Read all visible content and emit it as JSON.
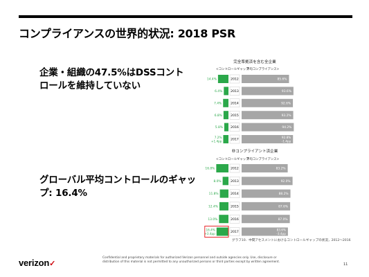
{
  "slide": {
    "title": "コンプライアンスの世界的状況: 2018 PSR",
    "point1_line1": "企業・組織の47.5%はDSSコント",
    "point1_line2": "ロールを維持していない",
    "point2_line1": "グローバル平均コントロールのギャッ",
    "point2_line2": "プ: 16.4%",
    "caption": "グラフ10．中間アセスメントにおけるコントロールギャップの状況，2012～2016",
    "footnote_line1": "Confidential and proprietary materials for authorized Verizon personnel and outside agencies only. Use, disclosure or",
    "footnote_line2": "distribution of this material is not permitted to any unauthorized persons or third parties except by written agreement.",
    "page_number": "11",
    "logo_text": "verizon",
    "logo_mark": "✓"
  },
  "colors": {
    "gap_bar": "#2ba84a",
    "gap_label": "#2ba84a",
    "score_bar": "#a6a6a6",
    "score_label": "#ffffff",
    "year_box": "#ffffff",
    "highlight_box": "#e8282b",
    "delta_label": "#2ba84a"
  },
  "chart_data": [
    {
      "type": "bar",
      "title": "完全準拠済を含む全企業",
      "legend_gap": "<コントロールギャップ",
      "legend_score": "平均コンプライアンス>",
      "categories": [
        "2012",
        "2013",
        "2014",
        "2015",
        "2016",
        "2017"
      ],
      "series": [
        {
          "name": "コントロールギャップ",
          "values": [
            14.4,
            6.4,
            7.4,
            6.8,
            5.8,
            7.2
          ]
        },
        {
          "name": "平均コンプライアンス",
          "values": [
            85.6,
            93.6,
            92.6,
            93.2,
            94.2,
            92.8
          ]
        }
      ],
      "gap_labels": [
        "14.4%",
        "6.4%",
        "7.4%",
        "6.8%",
        "5.8%",
        "7.2%"
      ],
      "score_labels": [
        "85.6%",
        "93.6%",
        "92.6%",
        "93.2%",
        "94.2%",
        "92.8%"
      ],
      "deltas": {
        "5": {
          "gap": "+1.4pp",
          "score": "-1.4pp"
        }
      },
      "highlight_index": null
    },
    {
      "type": "bar",
      "title": "非コンプライアント済企業",
      "legend_gap": "<コントロールギャップ",
      "legend_score": "平均コンプライアンス>",
      "categories": [
        "2012",
        "2013",
        "2014",
        "2015",
        "2016",
        "2017"
      ],
      "series": [
        {
          "name": "コントロールギャップ",
          "values": [
            16.8,
            8.0,
            11.8,
            12.4,
            13.0,
            16.4
          ]
        },
        {
          "name": "平均コンプライアンス",
          "values": [
            83.2,
            92.0,
            88.2,
            87.6,
            87.0,
            83.6
          ]
        }
      ],
      "gap_labels": [
        "16.8%",
        "8.0%",
        "11.8%",
        "12.4%",
        "13.0%",
        "16.4%"
      ],
      "score_labels": [
        "83.2%",
        "92.0%",
        "88.2%",
        "87.6%",
        "87.0%",
        "83.6%"
      ],
      "deltas": {
        "5": {
          "gap": "+3.4pp",
          "score": "-3.4pp"
        }
      },
      "highlight_index": 5
    }
  ]
}
